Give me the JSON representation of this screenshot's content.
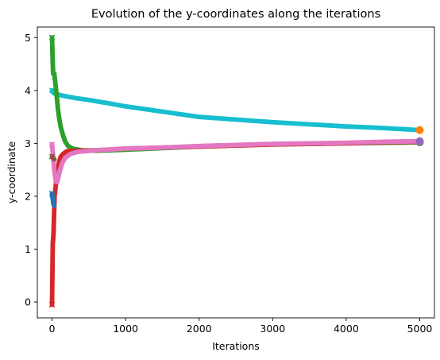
{
  "chart_data": {
    "type": "line",
    "title": "Evolution of the y-coordinates along the iterations",
    "xlabel": "Iterations",
    "ylabel": "y-coordinate",
    "xlim": [
      -200,
      5200
    ],
    "ylim": [
      -0.3,
      5.2
    ],
    "xticks": [
      0,
      1000,
      2000,
      3000,
      4000,
      5000
    ],
    "yticks": [
      0,
      1,
      2,
      3,
      4,
      5
    ],
    "grid": false,
    "legend": "none",
    "series": [
      {
        "color": "#17becf",
        "start": 4.0,
        "start_marker": "x",
        "end_marker": "circle",
        "end_color": "#ff7f0e",
        "end_value": 3.25,
        "points": [
          [
            0,
            4.0
          ],
          [
            20,
            3.95
          ],
          [
            60,
            3.93
          ],
          [
            150,
            3.9
          ],
          [
            300,
            3.86
          ],
          [
            500,
            3.82
          ],
          [
            800,
            3.75
          ],
          [
            1000,
            3.7
          ],
          [
            1500,
            3.6
          ],
          [
            2000,
            3.5
          ],
          [
            2500,
            3.45
          ],
          [
            3000,
            3.4
          ],
          [
            3500,
            3.36
          ],
          [
            4000,
            3.32
          ],
          [
            4500,
            3.29
          ],
          [
            5000,
            3.25
          ]
        ]
      },
      {
        "color": "#2ca02c",
        "start": 5.0,
        "start_marker": "x",
        "end_marker": "circle",
        "end_color": "#2ca02c",
        "end_value": 3.02,
        "points": [
          [
            0,
            5.0
          ],
          [
            8,
            4.6
          ],
          [
            15,
            4.32
          ],
          [
            30,
            4.32
          ],
          [
            60,
            3.95
          ],
          [
            80,
            3.65
          ],
          [
            100,
            3.45
          ],
          [
            120,
            3.3
          ],
          [
            150,
            3.15
          ],
          [
            180,
            3.03
          ],
          [
            220,
            2.95
          ],
          [
            280,
            2.9
          ],
          [
            400,
            2.87
          ],
          [
            600,
            2.86
          ],
          [
            1000,
            2.88
          ],
          [
            1500,
            2.91
          ],
          [
            2000,
            2.94
          ],
          [
            2500,
            2.96
          ],
          [
            3000,
            2.98
          ],
          [
            3500,
            2.99
          ],
          [
            4000,
            3.0
          ],
          [
            4500,
            3.01
          ],
          [
            5000,
            3.02
          ]
        ]
      },
      {
        "color": "#d62728",
        "start": -0.05,
        "start_marker": "x",
        "end_marker": "circle",
        "end_color": "#9467bd",
        "end_value": 3.03,
        "points": [
          [
            0,
            -0.05
          ],
          [
            10,
            1.1
          ],
          [
            20,
            1.28
          ],
          [
            35,
            2.0
          ],
          [
            55,
            2.25
          ],
          [
            75,
            2.5
          ],
          [
            95,
            2.65
          ],
          [
            120,
            2.75
          ],
          [
            150,
            2.8
          ],
          [
            200,
            2.85
          ],
          [
            300,
            2.86
          ],
          [
            600,
            2.87
          ],
          [
            1000,
            2.9
          ],
          [
            1500,
            2.92
          ],
          [
            2000,
            2.94
          ],
          [
            2500,
            2.96
          ],
          [
            3000,
            2.98
          ],
          [
            3500,
            2.99
          ],
          [
            4000,
            3.0
          ],
          [
            4500,
            3.02
          ],
          [
            5000,
            3.03
          ]
        ]
      },
      {
        "color": "#e377c2",
        "start": 2.98,
        "start_marker": "x",
        "end_marker": "circle",
        "end_color": "#9467bd",
        "end_value": 3.04,
        "points": [
          [
            0,
            2.98
          ],
          [
            15,
            2.75
          ],
          [
            30,
            2.5
          ],
          [
            50,
            2.28
          ],
          [
            70,
            2.27
          ],
          [
            90,
            2.38
          ],
          [
            110,
            2.5
          ],
          [
            140,
            2.63
          ],
          [
            180,
            2.73
          ],
          [
            250,
            2.8
          ],
          [
            350,
            2.84
          ],
          [
            600,
            2.87
          ],
          [
            1000,
            2.9
          ],
          [
            1500,
            2.92
          ],
          [
            2000,
            2.95
          ],
          [
            2500,
            2.97
          ],
          [
            3000,
            2.99
          ],
          [
            3500,
            3.0
          ],
          [
            4000,
            3.01
          ],
          [
            4500,
            3.03
          ],
          [
            5000,
            3.04
          ]
        ]
      },
      {
        "color": "#1f77b4",
        "start": 2.05,
        "start_marker": "x",
        "end_marker": "none",
        "end_color": "#1f77b4",
        "end_value": 1.82,
        "points": [
          [
            0,
            2.05
          ],
          [
            10,
            1.95
          ],
          [
            20,
            1.85
          ],
          [
            30,
            1.82
          ]
        ]
      },
      {
        "color": "#8c564b",
        "start": 2.75,
        "start_marker": "x",
        "end_marker": "none",
        "end_color": "#8c564b",
        "end_value": 2.7,
        "points": [
          [
            0,
            2.75
          ],
          [
            15,
            2.72
          ],
          [
            30,
            2.7
          ]
        ]
      }
    ]
  }
}
